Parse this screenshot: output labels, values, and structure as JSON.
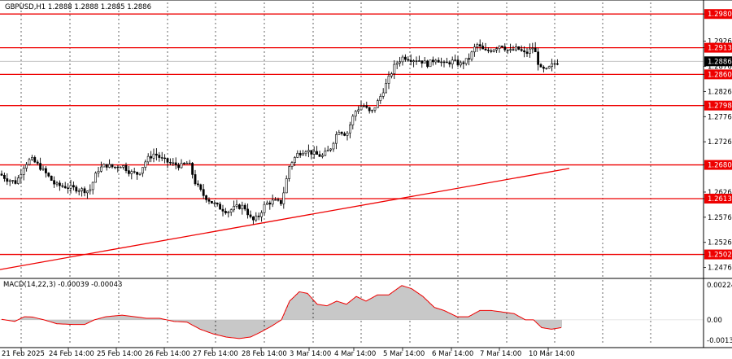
{
  "header": {
    "title": "GBPUSD,H1  1.2888 1.2888 1.2885 1.2886"
  },
  "macd": {
    "label": "MACD(14,22,3) -0.00039 -0.00043",
    "ticks": [
      "0.00224",
      "0.00",
      "-0.00131"
    ]
  },
  "colors": {
    "level": "#ee0000",
    "bars": "#000000",
    "macd_hist": "#9a9a9a",
    "macd_signal": "#ee0000",
    "grid": "#000000"
  },
  "chart_data": {
    "type": "candlestick",
    "symbol": "GBPUSD",
    "timeframe": "H1",
    "ohlc_header": {
      "open": 1.2888,
      "high": 1.2888,
      "low": 1.2885,
      "close": 1.2886
    },
    "current_price": 1.2886,
    "ylim": [
      1.2456,
      1.3003
    ],
    "y_ticks": [
      "1.2980",
      "1.2926",
      "1.2913",
      "1.2876",
      "1.2860",
      "1.2826",
      "1.2798",
      "1.2776",
      "1.2726",
      "1.2680",
      "1.2626",
      "1.2613",
      "1.2576",
      "1.2526",
      "1.2502",
      "1.2476"
    ],
    "levels": [
      1.298,
      1.2913,
      1.286,
      1.2798,
      1.268,
      1.2613,
      1.2502
    ],
    "level_labels": [
      "1.2980",
      "1.2913",
      "1.2860",
      "1.2798",
      "1.2680",
      "1.2613",
      "1.2502"
    ],
    "trendline": {
      "start": {
        "x": "21 Feb 2025",
        "y": 1.2472
      },
      "end": {
        "x": "10 Mar 14:00+",
        "y": 1.2673
      }
    },
    "x_labels": [
      "21 Feb 2025",
      "24 Feb 14:00",
      "25 Feb 14:00",
      "26 Feb 14:00",
      "27 Feb 14:00",
      "28 Feb 14:00",
      "3 Mar 14:00",
      "4 Mar 14:00",
      "5 Mar 14:00",
      "6 Mar 14:00",
      "7 Mar 14:00",
      "10 Mar 14:00"
    ],
    "price_path": [
      [
        0,
        1.2662
      ],
      [
        8,
        1.2652
      ],
      [
        20,
        1.2645
      ],
      [
        30,
        1.268
      ],
      [
        38,
        1.2692
      ],
      [
        48,
        1.2678
      ],
      [
        58,
        1.266
      ],
      [
        68,
        1.264
      ],
      [
        80,
        1.2637
      ],
      [
        92,
        1.2633
      ],
      [
        102,
        1.263
      ],
      [
        110,
        1.2628
      ],
      [
        120,
        1.267
      ],
      [
        130,
        1.268
      ],
      [
        140,
        1.2675
      ],
      [
        150,
        1.268
      ],
      [
        160,
        1.2665
      ],
      [
        170,
        1.2662
      ],
      [
        180,
        1.269
      ],
      [
        190,
        1.2703
      ],
      [
        200,
        1.269
      ],
      [
        210,
        1.2683
      ],
      [
        222,
        1.2678
      ],
      [
        232,
        1.2685
      ],
      [
        240,
        1.2645
      ],
      [
        250,
        1.262
      ],
      [
        260,
        1.2606
      ],
      [
        270,
        1.2595
      ],
      [
        280,
        1.2587
      ],
      [
        290,
        1.2596
      ],
      [
        300,
        1.2598
      ],
      [
        310,
        1.2568
      ],
      [
        318,
        1.2578
      ],
      [
        326,
        1.2602
      ],
      [
        336,
        1.2608
      ],
      [
        346,
        1.2605
      ],
      [
        356,
        1.268
      ],
      [
        366,
        1.2702
      ],
      [
        376,
        1.271
      ],
      [
        386,
        1.2702
      ],
      [
        396,
        1.2697
      ],
      [
        406,
        1.2712
      ],
      [
        416,
        1.275
      ],
      [
        426,
        1.274
      ],
      [
        436,
        1.2785
      ],
      [
        446,
        1.28
      ],
      [
        456,
        1.2782
      ],
      [
        466,
        1.281
      ],
      [
        476,
        1.2845
      ],
      [
        486,
        1.288
      ],
      [
        496,
        1.2895
      ],
      [
        506,
        1.289
      ],
      [
        516,
        1.2888
      ],
      [
        526,
        1.288
      ],
      [
        536,
        1.2892
      ],
      [
        546,
        1.288
      ],
      [
        556,
        1.2886
      ],
      [
        566,
        1.288
      ],
      [
        576,
        1.289
      ],
      [
        586,
        1.292
      ],
      [
        596,
        1.2905
      ],
      [
        606,
        1.291
      ],
      [
        616,
        1.292
      ],
      [
        626,
        1.2905
      ],
      [
        636,
        1.2912
      ],
      [
        646,
        1.29
      ],
      [
        656,
        1.2915
      ],
      [
        664,
        1.287
      ],
      [
        672,
        1.2868
      ],
      [
        680,
        1.288
      ],
      [
        688,
        1.2886
      ]
    ],
    "macd_scale": [
      -0.00131,
      0.00224
    ],
    "macd_hist_path": [
      [
        0,
        5e-05
      ],
      [
        18,
        -0.0001
      ],
      [
        30,
        0.0002
      ],
      [
        40,
        0.00018
      ],
      [
        54,
        0.0
      ],
      [
        70,
        -0.00025
      ],
      [
        90,
        -0.0003
      ],
      [
        104,
        -0.0003
      ],
      [
        116,
        0.0
      ],
      [
        130,
        0.0002
      ],
      [
        150,
        0.0003
      ],
      [
        166,
        0.0002
      ],
      [
        180,
        0.0001
      ],
      [
        196,
        0.0001
      ],
      [
        214,
        -0.0001
      ],
      [
        230,
        -0.00015
      ],
      [
        246,
        -0.0006
      ],
      [
        262,
        -0.0009
      ],
      [
        278,
        -0.0011
      ],
      [
        294,
        -0.0012
      ],
      [
        308,
        -0.0011
      ],
      [
        320,
        -0.0008
      ],
      [
        334,
        -0.0004
      ],
      [
        346,
        0.0
      ],
      [
        356,
        0.0012
      ],
      [
        368,
        0.0018
      ],
      [
        378,
        0.0017
      ],
      [
        390,
        0.001
      ],
      [
        402,
        0.0009
      ],
      [
        414,
        0.0012
      ],
      [
        426,
        0.001
      ],
      [
        438,
        0.0015
      ],
      [
        450,
        0.0012
      ],
      [
        464,
        0.0016
      ],
      [
        478,
        0.0016
      ],
      [
        494,
        0.0022
      ],
      [
        506,
        0.002
      ],
      [
        520,
        0.0015
      ],
      [
        534,
        0.0008
      ],
      [
        546,
        0.0006
      ],
      [
        562,
        0.0002
      ],
      [
        576,
        0.0002
      ],
      [
        590,
        0.0006
      ],
      [
        604,
        0.0006
      ],
      [
        618,
        0.0005
      ],
      [
        632,
        0.0004
      ],
      [
        646,
        0.0
      ],
      [
        656,
        0.0
      ],
      [
        666,
        -0.0005
      ],
      [
        678,
        -0.0006
      ],
      [
        690,
        -0.0005
      ]
    ]
  }
}
